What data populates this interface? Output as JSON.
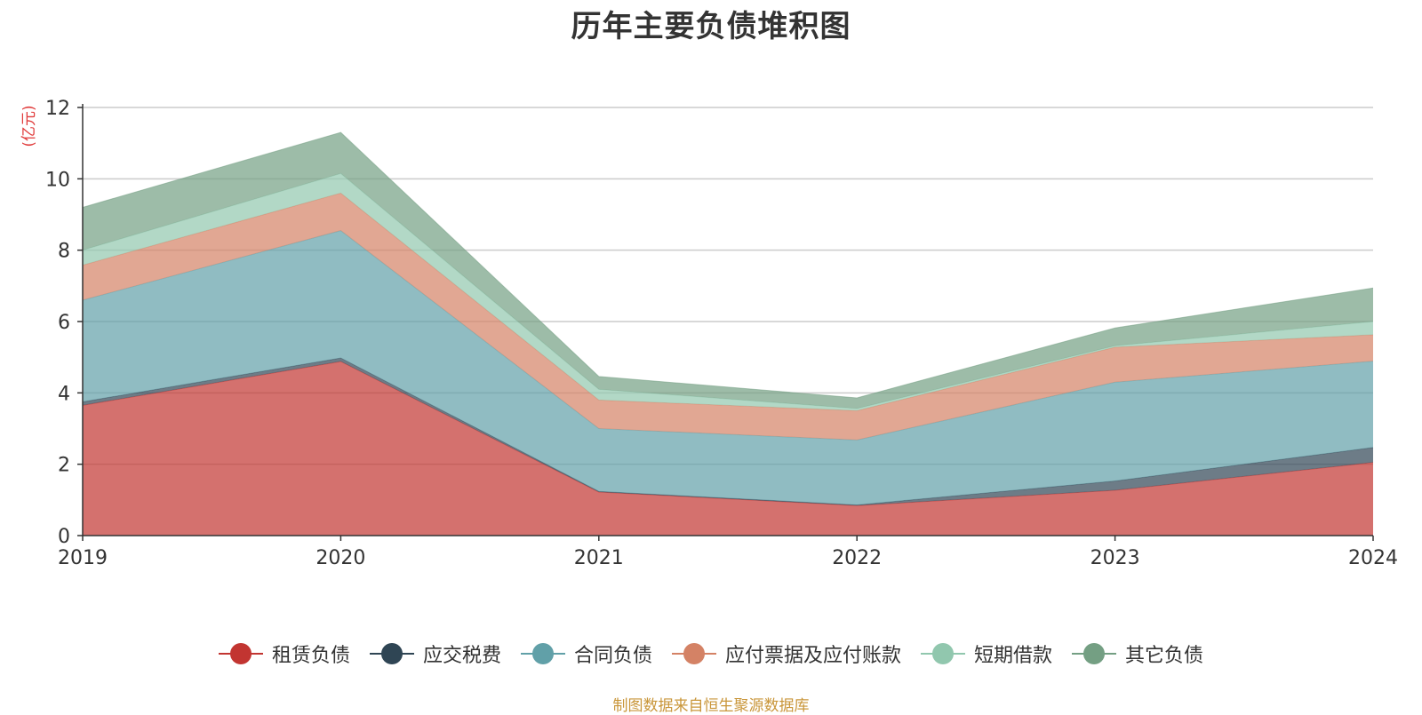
{
  "title": "历年主要负债堆积图",
  "source_note": "制图数据来自恒生聚源数据库",
  "chart_data": {
    "type": "area",
    "stacked": true,
    "title": "历年主要负债堆积图",
    "xlabel": "",
    "ylabel": "(亿元)",
    "x": [
      "2019",
      "2020",
      "2021",
      "2022",
      "2023",
      "2024"
    ],
    "ylim": [
      0,
      12
    ],
    "yticks": [
      0,
      2,
      4,
      6,
      8,
      10,
      12
    ],
    "grid": true,
    "legend_position": "bottom",
    "series": [
      {
        "name": "租赁负债",
        "color": "#c23531",
        "values": [
          3.65,
          4.88,
          1.22,
          0.84,
          1.27,
          2.05
        ]
      },
      {
        "name": "应交税费",
        "color": "#2f4554",
        "values": [
          0.1,
          0.1,
          0.02,
          0.02,
          0.26,
          0.42
        ]
      },
      {
        "name": "合同负债",
        "color": "#61a0a8",
        "values": [
          2.85,
          3.57,
          1.76,
          1.82,
          2.77,
          2.42
        ]
      },
      {
        "name": "应付票据及应付账款",
        "color": "#d48265",
        "values": [
          0.98,
          1.05,
          0.8,
          0.82,
          0.98,
          0.74
        ]
      },
      {
        "name": "短期借款",
        "color": "#91c7ae",
        "values": [
          0.42,
          0.55,
          0.3,
          0.06,
          0.04,
          0.37
        ]
      },
      {
        "name": "其它负债",
        "color": "#749f83",
        "values": [
          1.2,
          1.15,
          0.36,
          0.3,
          0.5,
          0.94
        ]
      }
    ]
  }
}
